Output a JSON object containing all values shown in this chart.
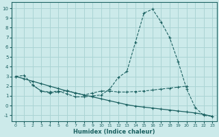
{
  "xlabel": "Humidex (Indice chaleur)",
  "bg_color": "#cceaea",
  "grid_color": "#aad4d4",
  "line_color": "#1a6060",
  "xlim": [
    -0.5,
    23.5
  ],
  "ylim": [
    -1.6,
    10.6
  ],
  "yticks": [
    -1,
    0,
    1,
    2,
    3,
    4,
    5,
    6,
    7,
    8,
    9,
    10
  ],
  "xticks": [
    0,
    1,
    2,
    3,
    4,
    5,
    6,
    7,
    8,
    9,
    10,
    11,
    12,
    13,
    14,
    15,
    16,
    17,
    18,
    19,
    20,
    21,
    22,
    23
  ],
  "curve1_x": [
    0,
    1,
    2,
    3,
    4,
    5,
    6,
    7,
    8,
    9,
    10,
    11,
    12,
    13,
    14,
    15,
    16,
    17,
    18,
    19,
    20,
    21,
    22,
    23
  ],
  "curve1_y": [
    3.0,
    3.1,
    2.1,
    1.5,
    1.4,
    1.5,
    1.2,
    0.9,
    0.9,
    1.0,
    1.1,
    1.7,
    2.9,
    3.5,
    6.5,
    9.5,
    9.9,
    8.6,
    7.0,
    4.5,
    1.7,
    -0.2,
    -1.0,
    -1.1
  ],
  "curve2_x": [
    0,
    1,
    2,
    3,
    4,
    5,
    6,
    7,
    8,
    9,
    10,
    11,
    12,
    13,
    14,
    15,
    16,
    17,
    18,
    19,
    20,
    21,
    22,
    23
  ],
  "curve2_y": [
    3.0,
    2.75,
    2.5,
    2.25,
    2.0,
    1.75,
    1.5,
    1.3,
    1.1,
    0.9,
    0.7,
    0.5,
    0.3,
    0.1,
    -0.05,
    -0.15,
    -0.25,
    -0.35,
    -0.45,
    -0.55,
    -0.65,
    -0.75,
    -0.9,
    -1.1
  ],
  "curve3_x": [
    2,
    3,
    4,
    5,
    6,
    7,
    8,
    9,
    10,
    11,
    12,
    13,
    14,
    15,
    16,
    17,
    18,
    19,
    20
  ],
  "curve3_y": [
    2.1,
    1.5,
    1.3,
    1.4,
    1.55,
    1.3,
    1.1,
    1.3,
    1.5,
    1.5,
    1.4,
    1.4,
    1.45,
    1.5,
    1.6,
    1.7,
    1.8,
    1.9,
    2.0
  ]
}
